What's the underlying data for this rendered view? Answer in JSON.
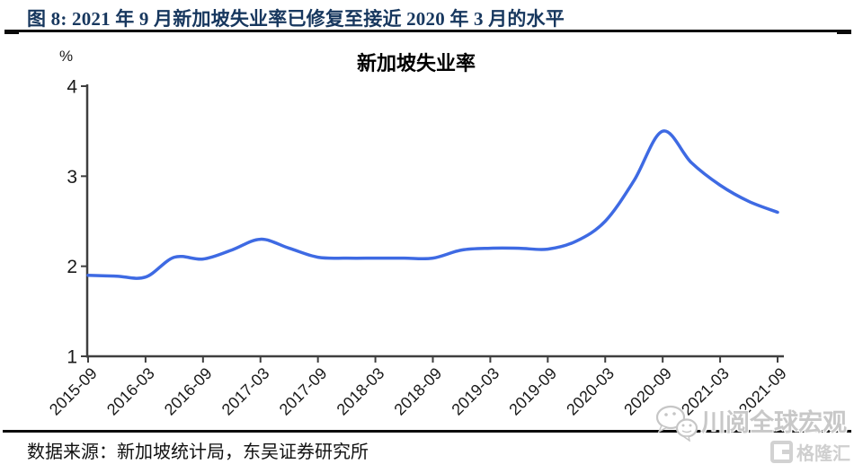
{
  "header": {
    "title": "图 8:  2021 年 9 月新加坡失业率已修复至接近 2020 年 3 月的水平"
  },
  "chart_data": {
    "type": "line",
    "title": "新加坡失业率",
    "ylabel": "%",
    "xlabel": "",
    "grid": false,
    "legend": null,
    "ylim": [
      1,
      4
    ],
    "yticks": [
      1,
      2,
      3,
      4
    ],
    "xtick_labels": [
      "2015-09",
      "2016-03",
      "2016-09",
      "2017-03",
      "2017-09",
      "2018-03",
      "2018-09",
      "2019-03",
      "2019-09",
      "2020-03",
      "2020-09",
      "2021-03",
      "2021-09"
    ],
    "x": [
      "2015-09",
      "2015-12",
      "2016-03",
      "2016-06",
      "2016-09",
      "2016-12",
      "2017-03",
      "2017-06",
      "2017-09",
      "2017-12",
      "2018-03",
      "2018-06",
      "2018-09",
      "2018-12",
      "2019-03",
      "2019-06",
      "2019-09",
      "2019-12",
      "2020-03",
      "2020-06",
      "2020-09",
      "2020-12",
      "2021-03",
      "2021-06",
      "2021-09"
    ],
    "series": [
      {
        "name": "新加坡失业率",
        "values": [
          1.9,
          1.89,
          1.88,
          2.1,
          2.08,
          2.18,
          2.3,
          2.2,
          2.1,
          2.09,
          2.09,
          2.09,
          2.09,
          2.18,
          2.2,
          2.2,
          2.19,
          2.28,
          2.5,
          2.95,
          3.5,
          3.15,
          2.9,
          2.72,
          2.6
        ]
      }
    ]
  },
  "colors": {
    "title_navy": "#17375E",
    "line_blue": "#3E6AE3",
    "axis_gray": "#3F3F3F",
    "tick_text": "#1a1a1a",
    "watermark_gray": "#C8C8C8"
  },
  "footer": {
    "source": "数据来源：新加坡统计局，东吴证券研究所"
  },
  "watermark": {
    "name": "川阅全球宏观",
    "logo": "格隆汇"
  }
}
